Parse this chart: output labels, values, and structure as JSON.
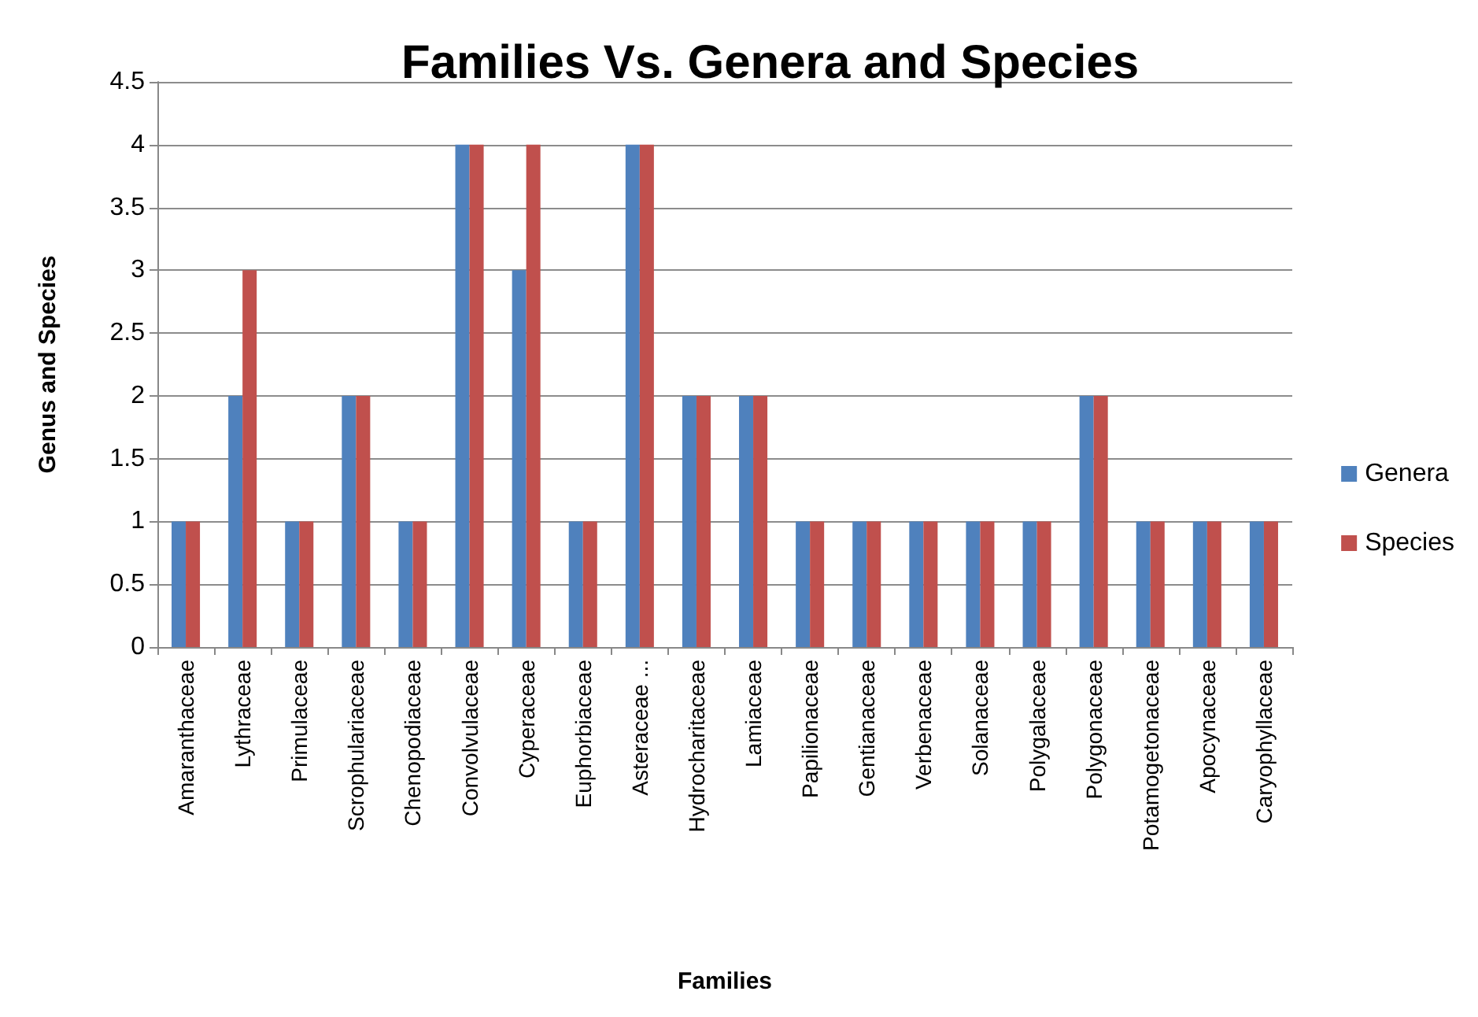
{
  "chart_data": {
    "type": "bar",
    "title": "Families Vs. Genera and Species",
    "xlabel": "Families",
    "ylabel": "Genus and Species",
    "categories": [
      "Amaranthaceae",
      "Lythraceae",
      "Primulaceae",
      "Scrophulariaceae",
      "Chenopodiaceae",
      "Convolvulaceae",
      "Cyperaceae",
      "Euphorbiaceae",
      "Asteraceae ...",
      "Hydrocharitaceae",
      "Lamiaceae",
      "Papilionaceae",
      "Gentianaceae",
      "Verbenaceae",
      "Solanaceae",
      "Polygalaceae",
      "Polygonaceae",
      "Potamogetonaceae",
      "Apocynaceae",
      "Caryophyllaceae"
    ],
    "series": [
      {
        "name": "Genera",
        "color": "#4f81bd",
        "values": [
          1,
          2,
          1,
          2,
          1,
          4,
          3,
          1,
          4,
          2,
          2,
          1,
          1,
          1,
          1,
          1,
          2,
          1,
          1,
          1
        ]
      },
      {
        "name": "Species",
        "color": "#c0504d",
        "values": [
          1,
          3,
          1,
          2,
          1,
          4,
          4,
          1,
          4,
          2,
          2,
          1,
          1,
          1,
          1,
          1,
          2,
          1,
          1,
          1
        ]
      }
    ],
    "ylim": [
      0,
      4.5
    ],
    "yticks": [
      0,
      0.5,
      1,
      1.5,
      2,
      2.5,
      3,
      3.5,
      4,
      4.5
    ],
    "grid": "y",
    "legend": "right"
  }
}
